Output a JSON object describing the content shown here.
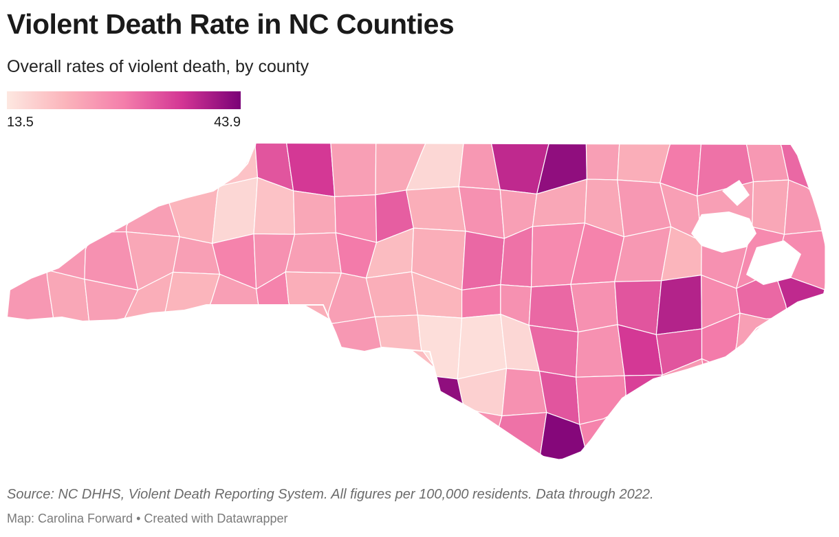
{
  "header": {
    "title": "Violent Death Rate in NC Counties",
    "subtitle": "Overall rates of violent death, by county"
  },
  "legend": {
    "min_label": "13.5",
    "max_label": "43.9",
    "min": 13.5,
    "max": 43.9,
    "color_stops": [
      "#fde8e1",
      "#fbb4bb",
      "#f47eab",
      "#d33594",
      "#7a0177"
    ]
  },
  "footer": {
    "source": "Source: NC DHHS, Violent Death Reporting System. All figures per 100,000 residents. Data through 2022.",
    "credit": "Map: Carolina Forward • Created with Datawrapper"
  },
  "map": {
    "region": "North Carolina",
    "unit": "per 100,000 residents",
    "county_rates": [
      19,
      33,
      36,
      24,
      23,
      16,
      25,
      38,
      42,
      24,
      22,
      29,
      30,
      25,
      31,
      25,
      24,
      21,
      16,
      19,
      23,
      27,
      32,
      22,
      26,
      24,
      23,
      23,
      25,
      24,
      24,
      23,
      25,
      25,
      26,
      23,
      24,
      28,
      26,
      24,
      29,
      20,
      22,
      31,
      30,
      27,
      28,
      25,
      21,
      26,
      27,
      27,
      25,
      23,
      24,
      22,
      21,
      24,
      28,
      22,
      24,
      22,
      21,
      29,
      26,
      31,
      26,
      33,
      39,
      27,
      31,
      38,
      25,
      20,
      15,
      15,
      16,
      31,
      26,
      36,
      33,
      29,
      24,
      42,
      17,
      26,
      33,
      28,
      35,
      25,
      28,
      26,
      30,
      43,
      28,
      27,
      29,
      24,
      24,
      24
    ]
  }
}
